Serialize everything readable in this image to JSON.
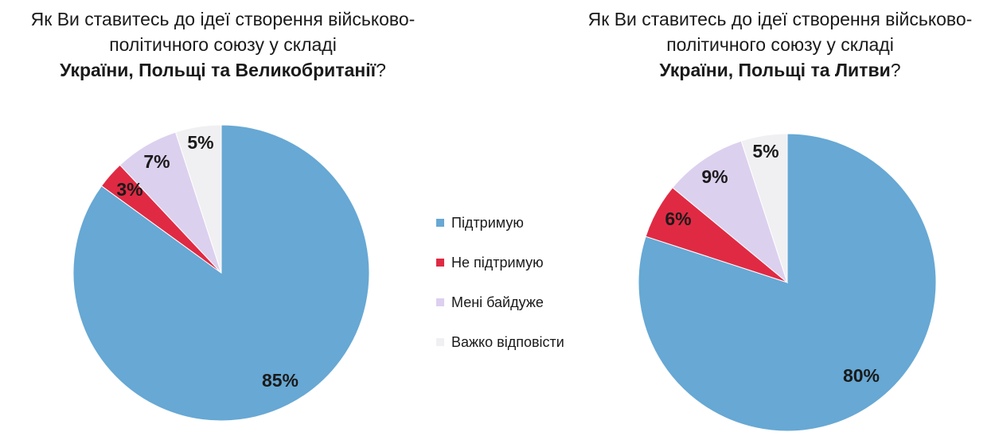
{
  "titles": [
    {
      "line1": "Як Ви ставитесь до ідеї створення військово-",
      "line2": "політичного союзу у складі",
      "bold": "України, Польщі та Великобританії",
      "end": "?"
    },
    {
      "line1": "Як Ви ставитесь до ідеї створення військово-",
      "line2": "політичного союзу у складі",
      "bold": "України, Польщі та Литви",
      "end": "?"
    }
  ],
  "legend": [
    {
      "label": "Підтримую",
      "color": "#67a8d4"
    },
    {
      "label": "Не підтримую",
      "color": "#e02a44"
    },
    {
      "label": "Мені байдуже",
      "color": "#dcd0ef"
    },
    {
      "label": "Важко відповісти",
      "color": "#f0eff2"
    }
  ],
  "chart_data": [
    {
      "type": "pie",
      "categories": [
        "Підтримую",
        "Не підтримую",
        "Мені байдуже",
        "Важко відповісти"
      ],
      "values": [
        85,
        3,
        7,
        5
      ],
      "labels": [
        "85%",
        "3%",
        "7%",
        "5%"
      ],
      "colors": [
        "#67a8d4",
        "#e02a44",
        "#dcd0ef",
        "#f0eff2"
      ]
    },
    {
      "type": "pie",
      "categories": [
        "Підтримую",
        "Не підтримую",
        "Мені байдуже",
        "Важко відповісти"
      ],
      "values": [
        80,
        6,
        9,
        5
      ],
      "labels": [
        "80%",
        "6%",
        "9%",
        "5%"
      ],
      "colors": [
        "#67a8d4",
        "#e02a44",
        "#dcd0ef",
        "#f0eff2"
      ]
    }
  ]
}
